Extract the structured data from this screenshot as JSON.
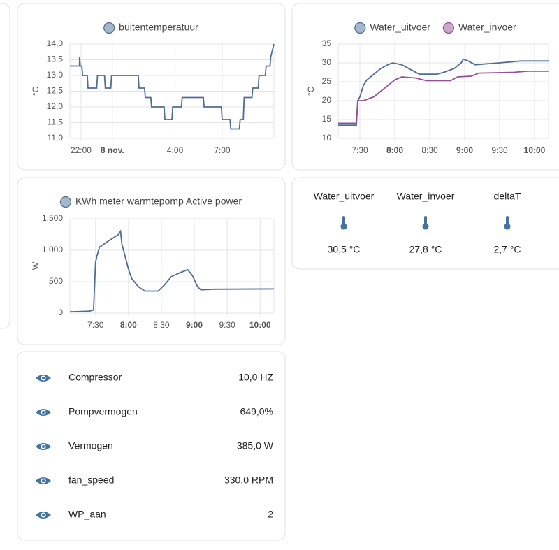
{
  "chart_data": [
    {
      "type": "line",
      "y_label": "°C",
      "xlim": [
        21.29,
        34.3
      ],
      "ylim": [
        11,
        14
      ],
      "xticks": [
        {
          "value": 22,
          "label": "22:00"
        },
        {
          "value": 24,
          "label": "8 nov."
        },
        {
          "value": 28,
          "label": "4:00"
        },
        {
          "value": 31,
          "label": "7:00"
        }
      ],
      "yticks": [
        {
          "value": 11,
          "label": "11,0"
        },
        {
          "value": 11.5,
          "label": "11,5"
        },
        {
          "value": 12,
          "label": "12,0"
        },
        {
          "value": 12.5,
          "label": "12,5"
        },
        {
          "value": 13,
          "label": "13,0"
        },
        {
          "value": 13.5,
          "label": "13,5"
        },
        {
          "value": 14,
          "label": "14,0"
        }
      ],
      "grid": true,
      "series": [
        {
          "name": "buitentemperatuur",
          "color": "#4f6d93",
          "x": [
            21.29,
            21.9,
            21.91,
            21.95,
            22.05,
            22.1,
            22.4,
            22.45,
            23.0,
            23.05,
            23.5,
            23.55,
            23.9,
            23.95,
            25.65,
            25.7,
            26.05,
            26.1,
            26.45,
            26.5,
            27.3,
            27.35,
            27.8,
            27.85,
            28.4,
            28.45,
            29.8,
            29.85,
            30.95,
            31.0,
            31.5,
            31.55,
            32.1,
            32.15,
            32.35,
            32.4,
            32.9,
            32.95,
            33.3,
            33.35,
            33.75,
            33.8,
            34.05,
            34.1,
            34.3
          ],
          "values": [
            13.3,
            13.3,
            13.6,
            13.3,
            13.3,
            13.0,
            13.0,
            12.6,
            12.6,
            13.0,
            13.0,
            12.6,
            12.6,
            13.0,
            13.0,
            12.6,
            12.6,
            12.3,
            12.3,
            12.0,
            12.0,
            11.6,
            11.6,
            12.0,
            12.0,
            12.3,
            12.3,
            12.0,
            12.0,
            11.6,
            11.6,
            11.3,
            11.3,
            11.6,
            11.6,
            12.3,
            12.3,
            12.6,
            12.6,
            13.0,
            13.0,
            13.3,
            13.3,
            13.6,
            14.0
          ]
        }
      ]
    },
    {
      "type": "line",
      "y_label": "°C",
      "xlim": [
        7.19,
        10.2
      ],
      "ylim": [
        10,
        35
      ],
      "xticks": [
        {
          "value": 7.5,
          "label": "7:30"
        },
        {
          "value": 8,
          "label": "8:00"
        },
        {
          "value": 8.5,
          "label": "8:30"
        },
        {
          "value": 9,
          "label": "9:00"
        },
        {
          "value": 9.5,
          "label": "9:30"
        },
        {
          "value": 10,
          "label": "10:00"
        }
      ],
      "yticks": [
        10,
        15,
        20,
        25,
        30,
        35
      ],
      "grid": true,
      "series": [
        {
          "name": "Water_uitvoer",
          "color": "#4f6d93",
          "x": [
            7.19,
            7.45,
            7.47,
            7.5,
            7.55,
            7.6,
            7.7,
            7.8,
            7.9,
            7.97,
            8.1,
            8.2,
            8.35,
            8.6,
            8.7,
            8.85,
            8.95,
            8.98,
            9.05,
            9.15,
            9.5,
            9.8,
            10.2
          ],
          "values": [
            13.5,
            13.5,
            20,
            21,
            24,
            25.5,
            27,
            28.5,
            29.5,
            30,
            29.5,
            28.5,
            27,
            27,
            27.5,
            28.5,
            30,
            31,
            30.5,
            29.5,
            30,
            30.5,
            30.5
          ]
        },
        {
          "name": "Water_invoer",
          "color": "#944f9b",
          "x": [
            7.19,
            7.45,
            7.47,
            7.55,
            7.7,
            7.8,
            7.9,
            8.0,
            8.1,
            8.3,
            8.45,
            8.8,
            8.9,
            9.1,
            9.2,
            9.7,
            9.9,
            10.2
          ],
          "values": [
            14,
            14,
            20,
            20,
            21,
            22.5,
            24,
            25.5,
            26.3,
            26,
            25.3,
            25.3,
            26.3,
            26.5,
            27.3,
            27.5,
            27.8,
            27.8
          ]
        }
      ]
    },
    {
      "type": "line",
      "y_label": "W",
      "xlim": [
        7.11,
        10.21
      ],
      "ylim": [
        0,
        1500
      ],
      "xticks": [
        {
          "value": 7.5,
          "label": "7:30"
        },
        {
          "value": 8,
          "label": "8:00"
        },
        {
          "value": 8.5,
          "label": "8:30"
        },
        {
          "value": 9,
          "label": "9:00"
        },
        {
          "value": 9.5,
          "label": "9:30"
        },
        {
          "value": 10,
          "label": "10:00"
        }
      ],
      "yticks": [
        0,
        500,
        {
          "value": 1000,
          "label": "1.000"
        },
        {
          "value": 1500,
          "label": "1.500"
        }
      ],
      "grid": true,
      "series": [
        {
          "name": "KWh meter warmtepomp Active power",
          "color": "#4f6d93",
          "x": [
            7.11,
            7.4,
            7.47,
            7.5,
            7.52,
            7.56,
            7.7,
            7.85,
            7.88,
            7.9,
            7.95,
            8.0,
            8.05,
            8.15,
            8.25,
            8.45,
            8.55,
            8.65,
            8.8,
            8.9,
            8.97,
            9.05,
            9.1,
            9.3,
            10.21
          ],
          "values": [
            20,
            30,
            50,
            800,
            900,
            1050,
            1150,
            1250,
            1300,
            1100,
            900,
            700,
            550,
            420,
            350,
            350,
            450,
            580,
            650,
            690,
            600,
            420,
            370,
            380,
            385
          ]
        }
      ]
    }
  ],
  "glance": {
    "items": [
      {
        "name": "Water_uitvoer",
        "state": "30,5 °C"
      },
      {
        "name": "Water_invoer",
        "state": "27,8 °C"
      },
      {
        "name": "deltaT",
        "state": "2,7 °C"
      }
    ]
  },
  "entities": {
    "rows": [
      {
        "name": "Compressor",
        "state": "10,0 HZ"
      },
      {
        "name": "Pompvermogen",
        "state": "649,0%"
      },
      {
        "name": "Vermogen",
        "state": "385,0 W"
      },
      {
        "name": "fan_speed",
        "state": "330,0 RPM"
      },
      {
        "name": "WP_aan",
        "state": "2"
      }
    ]
  }
}
